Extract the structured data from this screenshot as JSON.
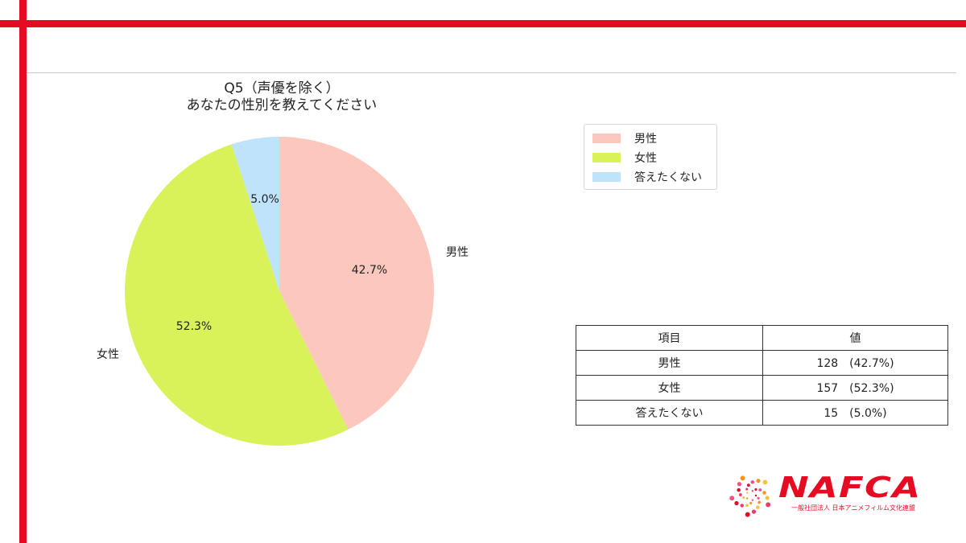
{
  "frame": {
    "accent_color": "#e60a23"
  },
  "chart": {
    "title_line1": "Q5（声優を除く）",
    "title_line2": "あなたの性別を教えてください"
  },
  "chart_data": {
    "type": "pie",
    "title": "Q5（声優を除く） あなたの性別を教えてください",
    "categories": [
      "男性",
      "女性",
      "答えたくない"
    ],
    "values": [
      128,
      157,
      15
    ],
    "percentages": [
      42.7,
      52.3,
      5.0
    ],
    "percent_labels": [
      "42.7%",
      "52.3%",
      "5.0%"
    ],
    "colors": [
      "#fcc8bd",
      "#daf25a",
      "#bee3fb"
    ],
    "start_angle": "top (12 o'clock), clockwise",
    "legend_position": "upper right",
    "slice_labels_shown": [
      "男性",
      "女性"
    ]
  },
  "legend": {
    "items": [
      {
        "label": "男性",
        "color": "#fcc8bd"
      },
      {
        "label": "女性",
        "color": "#daf25a"
      },
      {
        "label": "答えたくない",
        "color": "#bee3fb"
      }
    ]
  },
  "table": {
    "headers": [
      "項目",
      "値"
    ],
    "rows": [
      {
        "item": "男性",
        "value": "128　(42.7%)"
      },
      {
        "item": "女性",
        "value": "157　(52.3%)"
      },
      {
        "item": "答えたくない",
        "value": "15　(5.0%)"
      }
    ]
  },
  "logo": {
    "name": "NAFCA",
    "subtitle": "一般社団法人 日本アニメフィルム文化連盟"
  }
}
